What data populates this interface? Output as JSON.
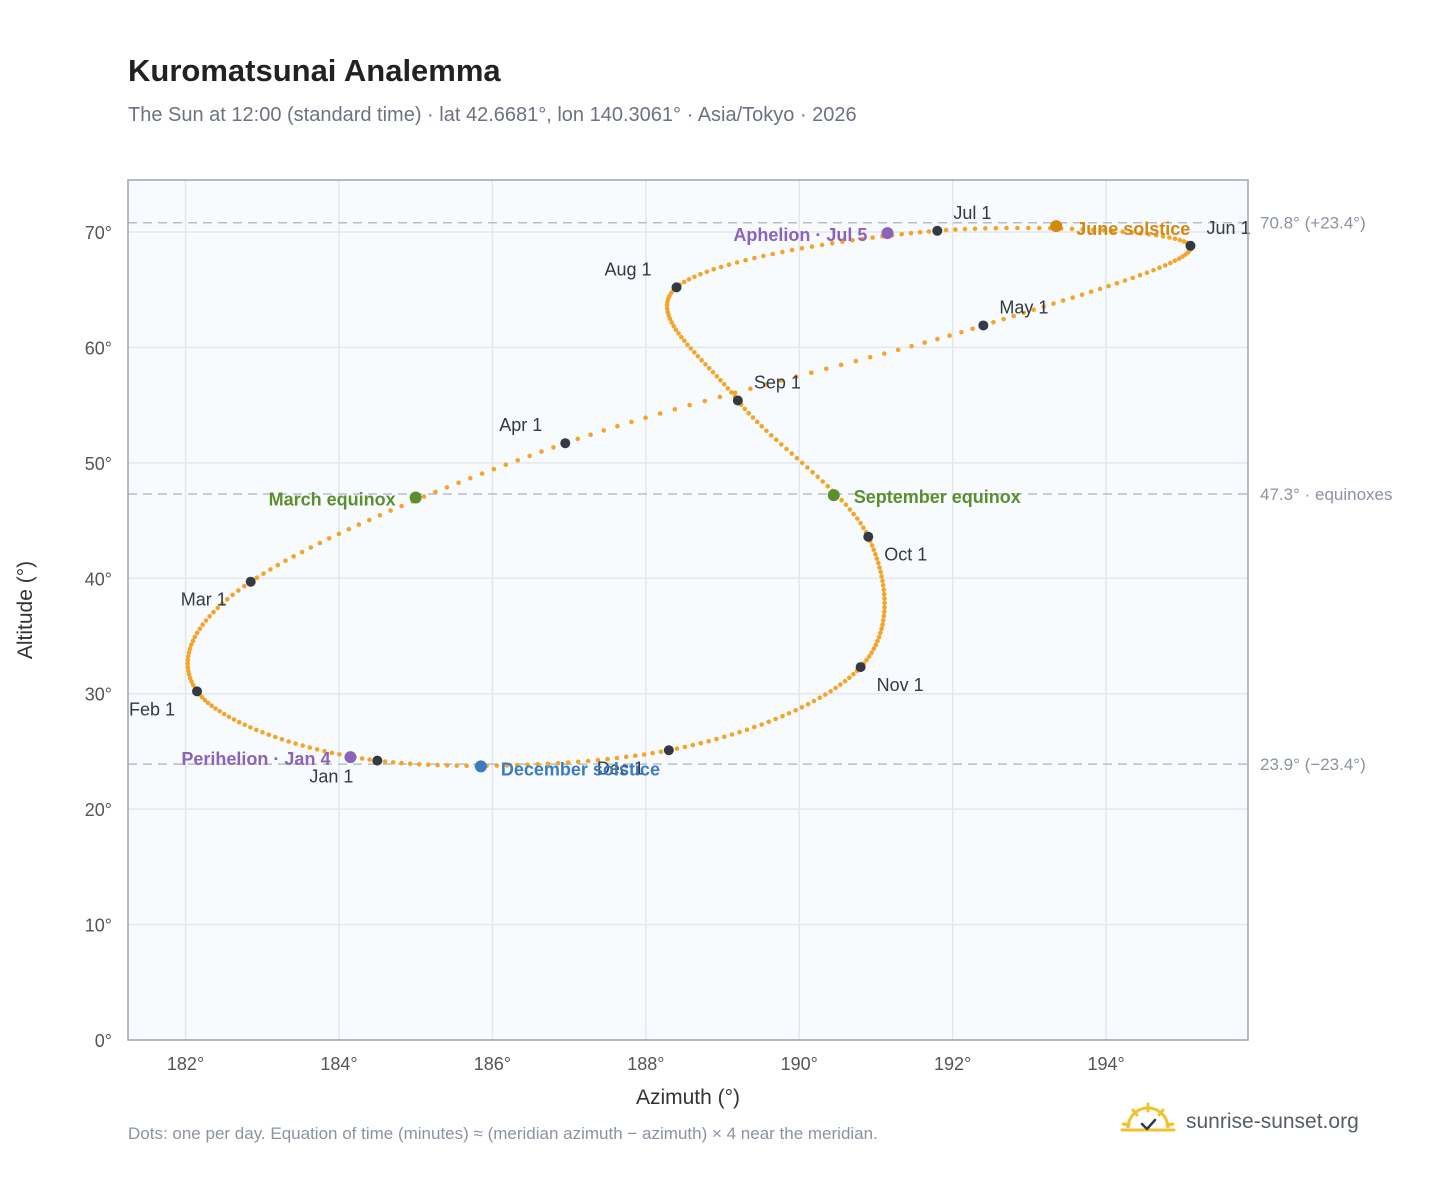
{
  "title": "Kuromatsunai Analemma",
  "subtitle": "The Sun at 12:00 (standard time) · lat 42.6681°, lon 140.3061° · Asia/Tokyo · 2026",
  "footer": "Dots: one per day. Equation of time (minutes) ≈ (meridian azimuth − azimuth) × 4 near the meridian.",
  "brand": {
    "name": "sunrise-sunset.org",
    "icon": "sun-logo-icon"
  },
  "colors": {
    "curve": "#f2a52a",
    "month_marker": "#333a44",
    "equinox": "#5a8f2e",
    "june_solstice": "#d4880f",
    "december_solstice": "#3b7bbf",
    "apsis": "#8b63b8",
    "reference_line": "#b8bec8",
    "grid": "#e3e7ec",
    "plot_bg": "#f8fbfd"
  },
  "chart_data": {
    "type": "scatter",
    "xlabel": "Azimuth (°)",
    "ylabel": "Altitude (°)",
    "xlim": [
      181.25,
      195.85
    ],
    "ylim": [
      0,
      74.5
    ],
    "x_ticks": [
      182,
      184,
      186,
      188,
      190,
      192,
      194
    ],
    "x_tick_labels": [
      "182°",
      "184°",
      "186°",
      "188°",
      "190°",
      "192°",
      "194°"
    ],
    "y_ticks": [
      0,
      10,
      20,
      30,
      40,
      50,
      60,
      70
    ],
    "y_tick_labels": [
      "0°",
      "10°",
      "20°",
      "30°",
      "40°",
      "50°",
      "60°",
      "70°"
    ],
    "grid": true,
    "reference_lines": [
      {
        "y": 70.8,
        "label": "70.8° (+23.4°)"
      },
      {
        "y": 47.3,
        "label": "47.3° · equinoxes"
      },
      {
        "y": 23.9,
        "label": "23.9° (−23.4°)"
      }
    ],
    "month_markers": [
      {
        "label": "Jan 1",
        "x": 184.5,
        "y": 24.2
      },
      {
        "label": "Feb 1",
        "x": 182.15,
        "y": 30.2
      },
      {
        "label": "Mar 1",
        "x": 182.85,
        "y": 39.7
      },
      {
        "label": "Apr 1",
        "x": 186.95,
        "y": 51.7
      },
      {
        "label": "May 1",
        "x": 192.4,
        "y": 61.9
      },
      {
        "label": "Jun 1",
        "x": 195.1,
        "y": 68.8
      },
      {
        "label": "Jul 1",
        "x": 191.8,
        "y": 70.1
      },
      {
        "label": "Aug 1",
        "x": 188.4,
        "y": 65.2
      },
      {
        "label": "Sep 1",
        "x": 189.2,
        "y": 55.4
      },
      {
        "label": "Oct 1",
        "x": 190.9,
        "y": 43.6
      },
      {
        "label": "Nov 1",
        "x": 190.8,
        "y": 32.3
      },
      {
        "label": "Dec 1",
        "x": 188.3,
        "y": 25.1
      }
    ],
    "events": [
      {
        "label": "March equinox",
        "x": 185.0,
        "y": 47.0,
        "kind": "equinox"
      },
      {
        "label": "September equinox",
        "x": 190.45,
        "y": 47.2,
        "kind": "equinox"
      },
      {
        "label": "June solstice",
        "x": 193.35,
        "y": 70.5,
        "kind": "june_solstice"
      },
      {
        "label": "December solstice",
        "x": 185.85,
        "y": 23.7,
        "kind": "december_solstice"
      },
      {
        "label": "Perihelion · Jan 4",
        "x": 184.15,
        "y": 24.5,
        "kind": "apsis"
      },
      {
        "label": "Aphelion · Jul 5",
        "x": 191.15,
        "y": 69.9,
        "kind": "apsis"
      }
    ],
    "series_points_per_day": true
  }
}
